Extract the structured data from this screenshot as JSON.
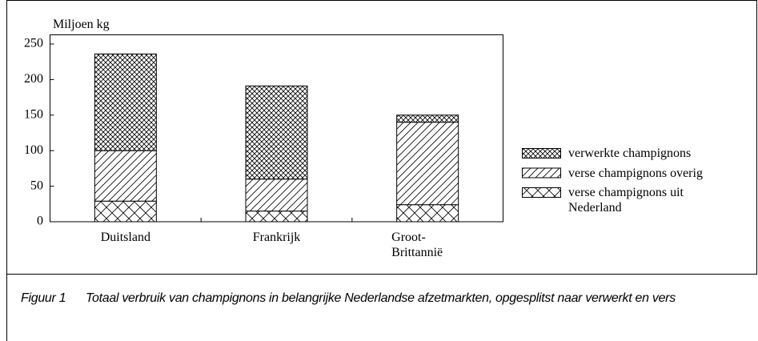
{
  "chart_data": {
    "type": "stacked_bar",
    "y_label": "Miljoen kg",
    "categories": [
      "Duitsland",
      "Frankrijk",
      "Groot-Brittannië"
    ],
    "series": [
      {
        "name": "verse champignons uit Nederland",
        "color": "#000000",
        "values": [
          29,
          15,
          24
        ]
      },
      {
        "name": "verse champignons overig",
        "color": "#000000",
        "values": [
          71,
          45,
          116
        ]
      },
      {
        "name": "verwerkte champignons",
        "color": "#000000",
        "values": [
          136,
          131,
          10
        ]
      }
    ],
    "ylim": [
      0,
      250
    ],
    "yticks": [
      0,
      50,
      100,
      150,
      200,
      250
    ],
    "grid": false,
    "legend": "right"
  },
  "caption": {
    "label": "Figuur 1",
    "text": "Totaal verbruik van champignons in belangrijke Nederlandse afzetmarkten, opgesplitst naar verwerkt en vers"
  }
}
